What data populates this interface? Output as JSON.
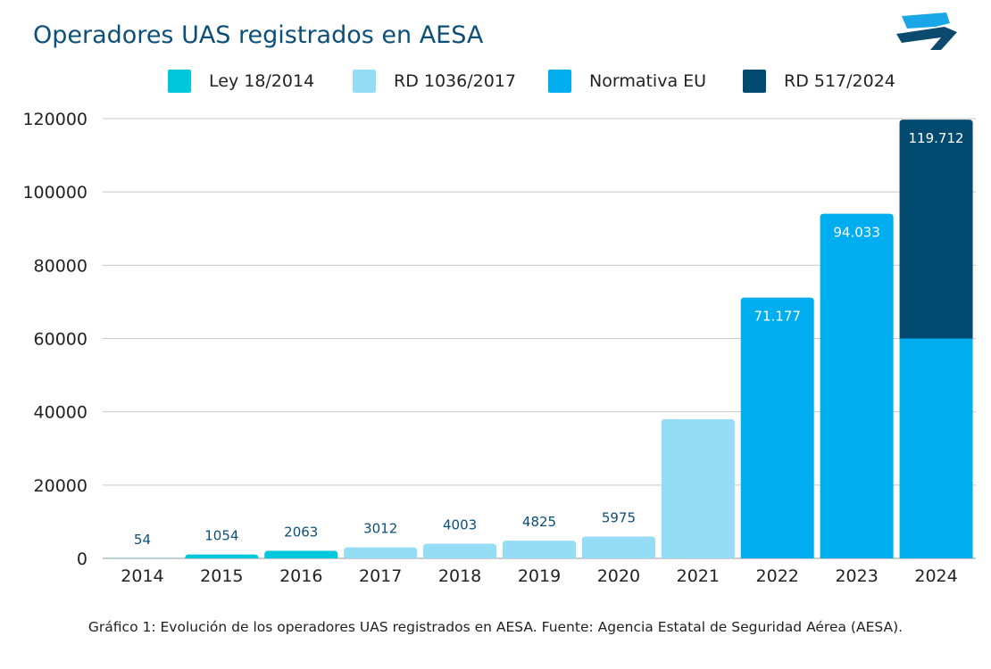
{
  "chart_data": {
    "type": "bar",
    "stacked": true,
    "title": "Operadores UAS registrados en AESA",
    "caption": "Gráfico 1: Evolución de los operadores UAS registrados en AESA. Fuente: Agencia Estatal de Seguridad Aérea (AESA).",
    "categories": [
      "2014",
      "2015",
      "2016",
      "2017",
      "2018",
      "2019",
      "2020",
      "2021",
      "2022",
      "2023",
      "2024"
    ],
    "ylim": [
      0,
      120000
    ],
    "yticks": [
      "0",
      "20000",
      "40000",
      "60000",
      "80000",
      "100000",
      "120000"
    ],
    "grid": true,
    "legend_position": "top",
    "series": [
      {
        "name": "Ley 18/2014",
        "color": "#00c8dc",
        "values": [
          54,
          1054,
          2063,
          null,
          null,
          null,
          null,
          null,
          null,
          null,
          null
        ]
      },
      {
        "name": "RD 1036/2017",
        "color": "#95dcf5",
        "values": [
          null,
          null,
          null,
          3012,
          4003,
          4825,
          5975,
          38000,
          null,
          null,
          null
        ]
      },
      {
        "name": "Normativa EU",
        "color": "#00aeef",
        "values": [
          null,
          null,
          null,
          null,
          null,
          null,
          null,
          null,
          71177,
          94033,
          60000
        ]
      },
      {
        "name": "RD 517/2024",
        "color": "#034a70",
        "values": [
          null,
          null,
          null,
          null,
          null,
          null,
          null,
          null,
          null,
          null,
          59712
        ]
      }
    ],
    "data_labels": [
      "54",
      "1054",
      "2063",
      "3012",
      "4003",
      "4825",
      "5975",
      "",
      "71.177",
      "94.033",
      "119.712"
    ],
    "totals": [
      54,
      1054,
      2063,
      3012,
      4003,
      4825,
      5975,
      38000,
      71177,
      94033,
      119712
    ]
  },
  "colors": {
    "title": "#0b4f7a",
    "label_dark": "#0b4f7a",
    "label_light": "#ffffff",
    "grid": "#c8c8c8"
  }
}
